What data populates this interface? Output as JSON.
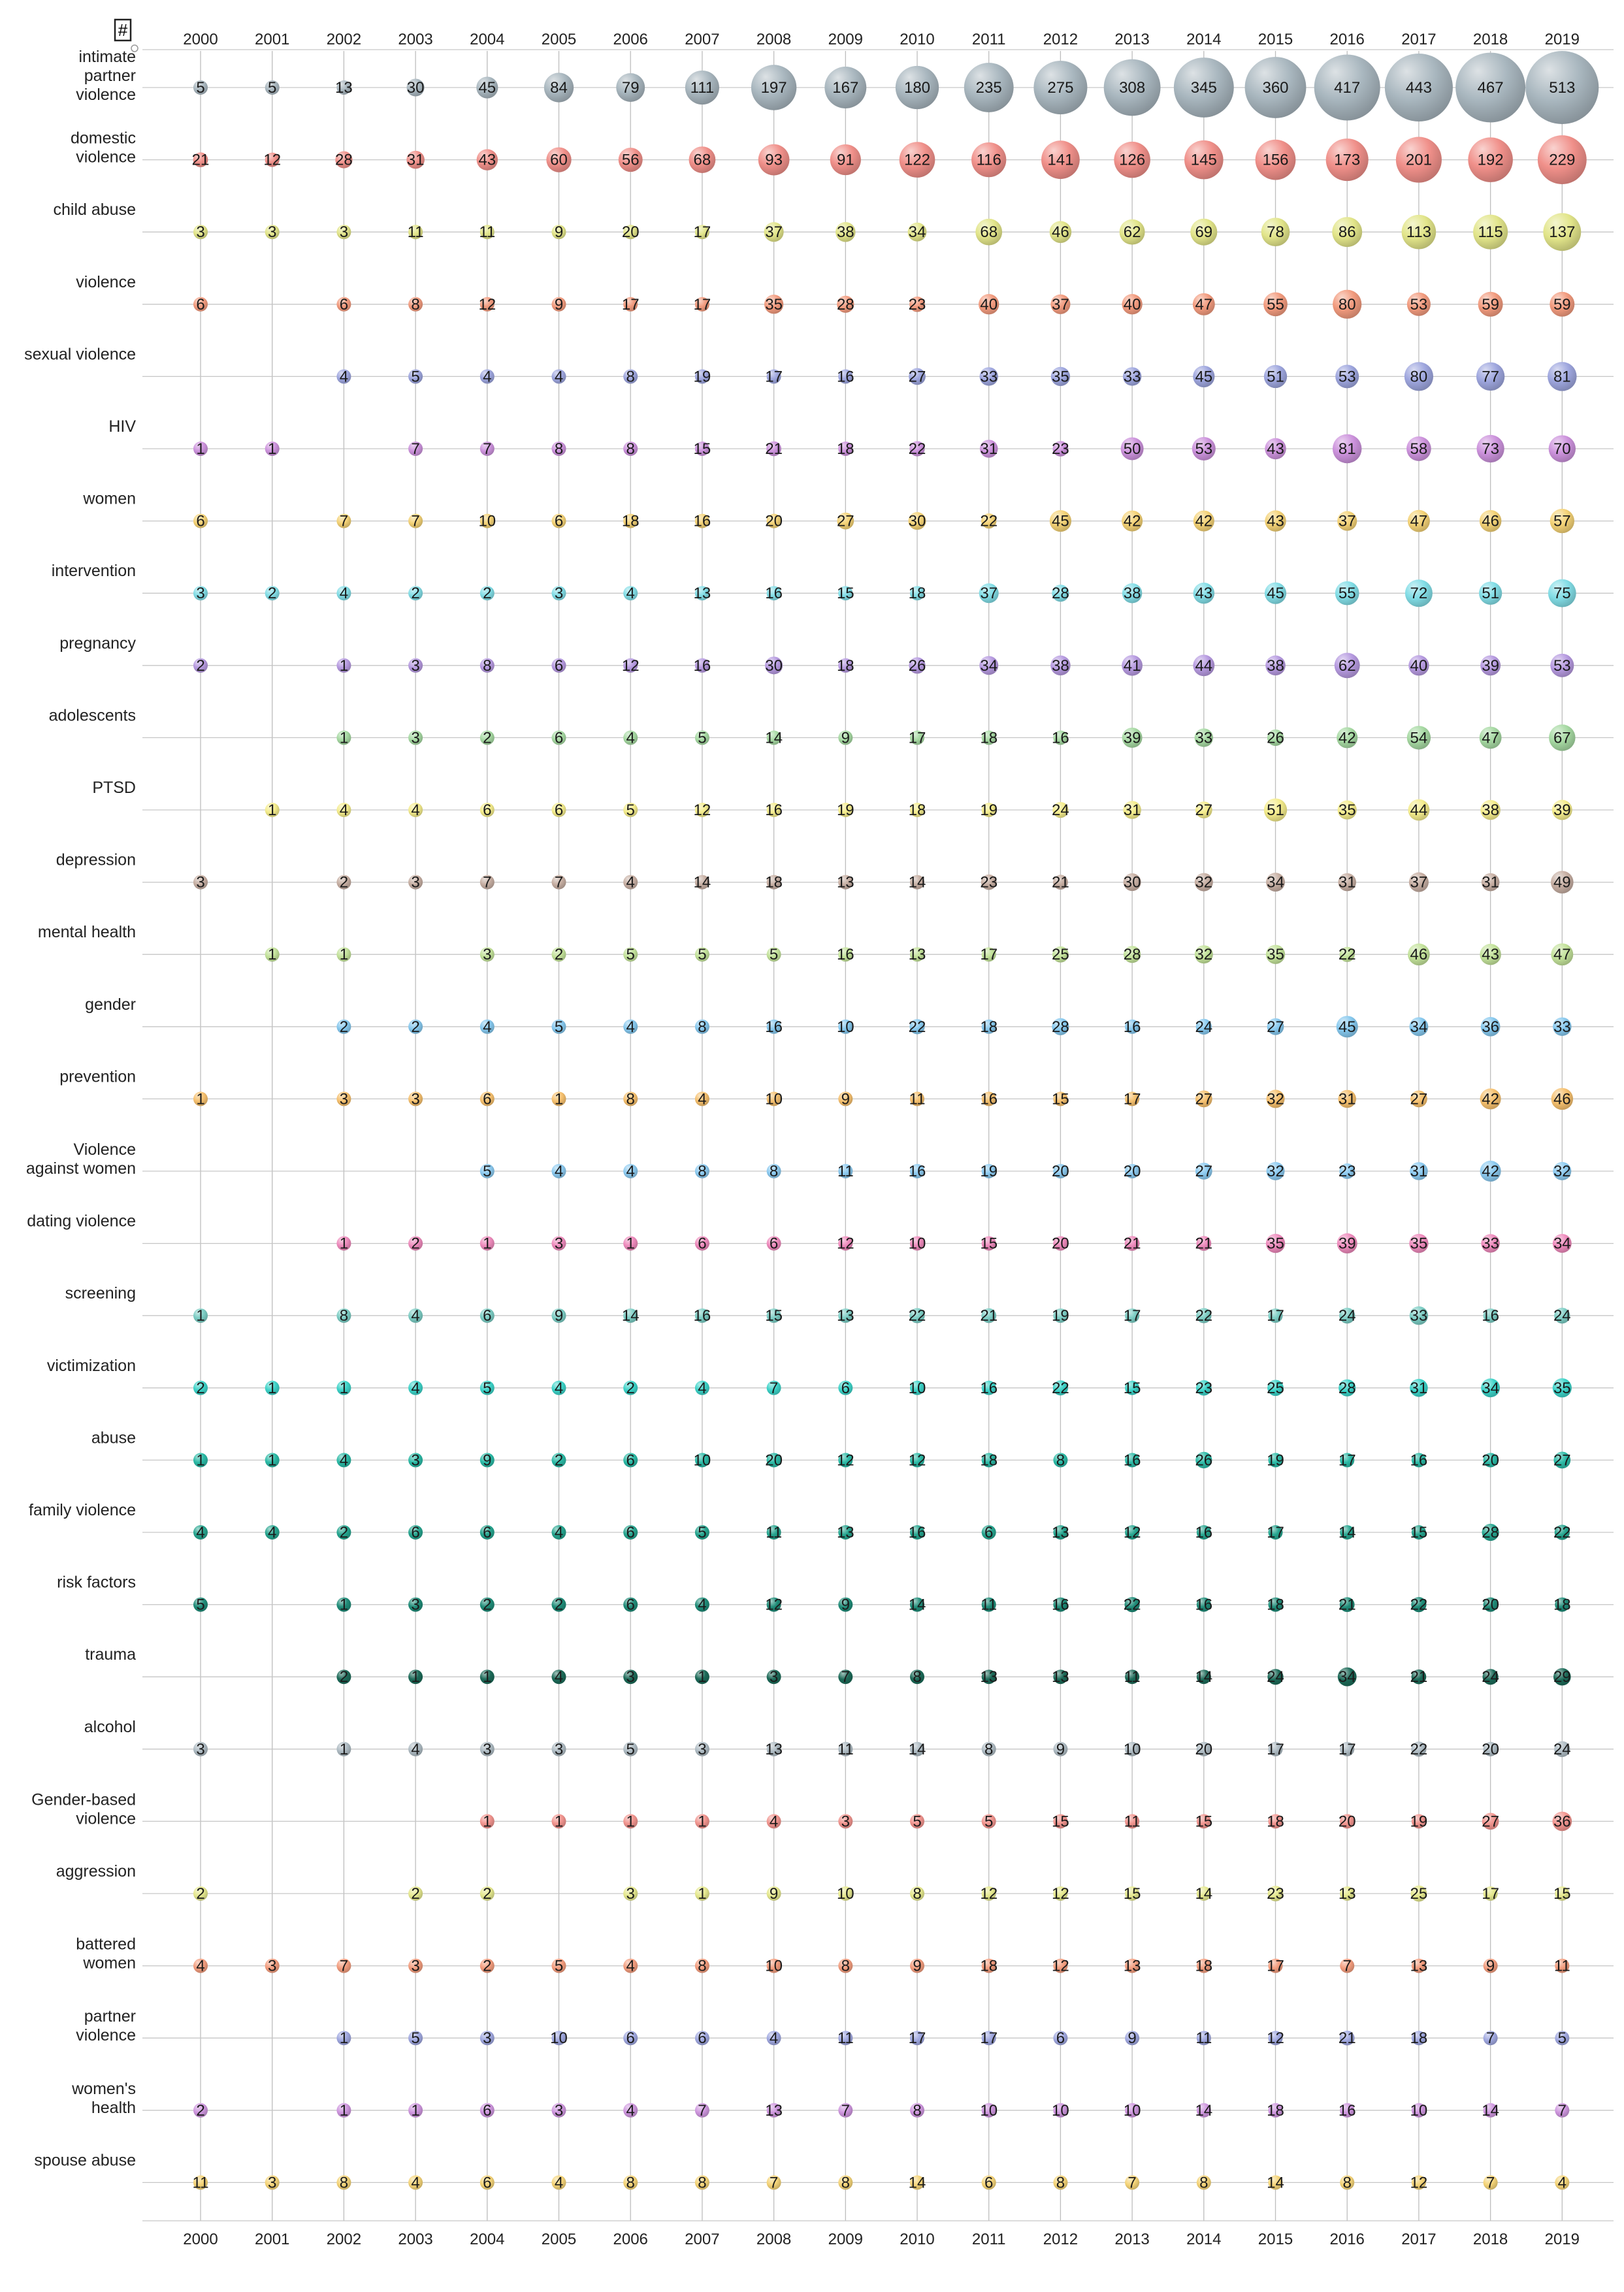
{
  "chart_data": {
    "type": "bubble-matrix",
    "corner_label": "#",
    "years": [
      "2000",
      "2001",
      "2002",
      "2003",
      "2004",
      "2005",
      "2006",
      "2007",
      "2008",
      "2009",
      "2010",
      "2011",
      "2012",
      "2013",
      "2014",
      "2015",
      "2016",
      "2017",
      "2018",
      "2019"
    ],
    "keywords": [
      {
        "label": [
          "intimate",
          "partner",
          "violence"
        ],
        "color": "#a9b7bf",
        "values": [
          5,
          5,
          13,
          30,
          45,
          84,
          79,
          111,
          197,
          167,
          180,
          235,
          275,
          308,
          345,
          360,
          417,
          443,
          467,
          513
        ]
      },
      {
        "label": [
          "domestic",
          "violence"
        ],
        "color": "#f0908a",
        "values": [
          21,
          12,
          28,
          31,
          43,
          60,
          56,
          68,
          93,
          91,
          122,
          116,
          141,
          126,
          145,
          156,
          173,
          201,
          192,
          229
        ]
      },
      {
        "label": [
          "child abuse"
        ],
        "color": "#e2e58a",
        "values": [
          3,
          3,
          3,
          11,
          11,
          9,
          20,
          17,
          37,
          38,
          34,
          68,
          46,
          62,
          69,
          78,
          86,
          113,
          115,
          137
        ]
      },
      {
        "label": [
          "violence"
        ],
        "color": "#f29b7e",
        "values": [
          6,
          null,
          6,
          8,
          12,
          9,
          17,
          17,
          35,
          28,
          23,
          40,
          37,
          40,
          47,
          55,
          80,
          53,
          59,
          59
        ]
      },
      {
        "label": [
          "sexual violence"
        ],
        "color": "#9ea6de",
        "values": [
          null,
          null,
          4,
          5,
          4,
          4,
          8,
          19,
          17,
          16,
          27,
          33,
          35,
          33,
          45,
          51,
          53,
          80,
          77,
          81
        ]
      },
      {
        "label": [
          "HIV"
        ],
        "color": "#cc92dc",
        "values": [
          1,
          1,
          null,
          7,
          7,
          8,
          8,
          15,
          21,
          18,
          22,
          31,
          23,
          50,
          53,
          43,
          81,
          58,
          73,
          70
        ]
      },
      {
        "label": [
          "women"
        ],
        "color": "#f4d276",
        "values": [
          6,
          null,
          7,
          7,
          10,
          6,
          18,
          16,
          20,
          27,
          30,
          22,
          45,
          42,
          42,
          43,
          37,
          47,
          46,
          57
        ]
      },
      {
        "label": [
          "intervention"
        ],
        "color": "#82dde6",
        "values": [
          3,
          2,
          4,
          2,
          2,
          3,
          4,
          13,
          16,
          15,
          18,
          37,
          28,
          38,
          43,
          45,
          55,
          72,
          51,
          75
        ]
      },
      {
        "label": [
          "pregnancy"
        ],
        "color": "#b69ae0",
        "values": [
          2,
          null,
          1,
          3,
          8,
          6,
          12,
          16,
          30,
          18,
          26,
          34,
          38,
          41,
          44,
          38,
          62,
          40,
          39,
          53
        ]
      },
      {
        "label": [
          "adolescents"
        ],
        "color": "#a6d9a2",
        "values": [
          null,
          null,
          1,
          3,
          2,
          6,
          4,
          5,
          14,
          9,
          17,
          18,
          16,
          39,
          33,
          26,
          42,
          54,
          47,
          67
        ]
      },
      {
        "label": [
          "PTSD"
        ],
        "color": "#f4ec8c",
        "values": [
          null,
          1,
          4,
          4,
          6,
          6,
          5,
          12,
          16,
          19,
          18,
          19,
          24,
          31,
          27,
          51,
          35,
          44,
          38,
          39
        ]
      },
      {
        "label": [
          "depression"
        ],
        "color": "#c6aea2",
        "values": [
          3,
          null,
          2,
          3,
          7,
          7,
          4,
          14,
          18,
          13,
          14,
          23,
          21,
          30,
          32,
          34,
          31,
          37,
          31,
          49
        ]
      },
      {
        "label": [
          "mental health"
        ],
        "color": "#c3e29a",
        "values": [
          null,
          1,
          1,
          null,
          3,
          2,
          5,
          5,
          5,
          16,
          13,
          17,
          25,
          28,
          32,
          35,
          22,
          46,
          43,
          47
        ]
      },
      {
        "label": [
          "gender"
        ],
        "color": "#86c8ee",
        "values": [
          null,
          null,
          2,
          2,
          4,
          5,
          4,
          8,
          16,
          10,
          22,
          18,
          28,
          16,
          24,
          27,
          45,
          34,
          36,
          33
        ]
      },
      {
        "label": [
          "prevention"
        ],
        "color": "#f6c06e",
        "values": [
          1,
          null,
          3,
          3,
          6,
          1,
          8,
          4,
          10,
          9,
          11,
          16,
          15,
          17,
          27,
          32,
          31,
          27,
          42,
          46
        ]
      },
      {
        "label": [
          "Violence",
          "against women"
        ],
        "color": "#8ccaf0",
        "values": [
          null,
          null,
          null,
          null,
          5,
          4,
          4,
          8,
          8,
          11,
          16,
          19,
          20,
          20,
          27,
          32,
          23,
          31,
          42,
          32
        ]
      },
      {
        "label": [
          "dating violence"
        ],
        "color": "#ee8abc",
        "values": [
          null,
          null,
          1,
          2,
          1,
          3,
          1,
          6,
          6,
          12,
          10,
          15,
          20,
          21,
          21,
          35,
          39,
          35,
          33,
          34
        ]
      },
      {
        "label": [
          "screening"
        ],
        "color": "#7ccdc4",
        "values": [
          1,
          null,
          8,
          4,
          6,
          9,
          14,
          16,
          15,
          13,
          22,
          21,
          19,
          17,
          22,
          17,
          24,
          33,
          16,
          24
        ]
      },
      {
        "label": [
          "victimization"
        ],
        "color": "#3cd3c8",
        "values": [
          2,
          1,
          1,
          4,
          5,
          4,
          2,
          4,
          7,
          6,
          10,
          16,
          22,
          15,
          23,
          25,
          28,
          31,
          34,
          35
        ]
      },
      {
        "label": [
          "abuse"
        ],
        "color": "#2bbaa6",
        "values": [
          1,
          1,
          4,
          3,
          9,
          2,
          6,
          10,
          20,
          12,
          12,
          18,
          8,
          16,
          26,
          19,
          17,
          16,
          20,
          27
        ]
      },
      {
        "label": [
          "family violence"
        ],
        "color": "#26a58f",
        "values": [
          4,
          4,
          2,
          6,
          6,
          4,
          6,
          5,
          11,
          13,
          16,
          6,
          13,
          12,
          16,
          17,
          14,
          15,
          28,
          22
        ]
      },
      {
        "label": [
          "risk factors"
        ],
        "color": "#1f8c78",
        "values": [
          5,
          null,
          1,
          3,
          2,
          2,
          6,
          4,
          12,
          9,
          14,
          11,
          16,
          22,
          16,
          18,
          21,
          22,
          20,
          18
        ]
      },
      {
        "label": [
          "trauma"
        ],
        "color": "#1c6a58",
        "values": [
          null,
          null,
          2,
          1,
          1,
          4,
          3,
          1,
          3,
          7,
          8,
          13,
          13,
          11,
          14,
          24,
          34,
          21,
          24,
          29
        ]
      },
      {
        "label": [
          "alcohol"
        ],
        "color": "#aebbc3",
        "values": [
          3,
          null,
          1,
          4,
          3,
          3,
          5,
          3,
          13,
          11,
          14,
          8,
          9,
          10,
          20,
          17,
          17,
          22,
          20,
          24
        ]
      },
      {
        "label": [
          "Gender-based",
          "violence"
        ],
        "color": "#f1948e",
        "values": [
          null,
          null,
          null,
          null,
          1,
          1,
          1,
          1,
          4,
          3,
          5,
          5,
          15,
          11,
          15,
          18,
          20,
          19,
          27,
          36
        ]
      },
      {
        "label": [
          "aggression"
        ],
        "color": "#e5e88e",
        "values": [
          2,
          null,
          null,
          2,
          2,
          null,
          3,
          1,
          9,
          10,
          8,
          12,
          12,
          15,
          14,
          23,
          13,
          25,
          17,
          15
        ]
      },
      {
        "label": [
          "battered",
          "women"
        ],
        "color": "#f39d7e",
        "values": [
          4,
          3,
          7,
          3,
          2,
          5,
          4,
          8,
          10,
          8,
          9,
          18,
          12,
          13,
          18,
          17,
          7,
          13,
          9,
          11
        ]
      },
      {
        "label": [
          "partner",
          "violence"
        ],
        "color": "#a0a8e0",
        "values": [
          null,
          null,
          1,
          5,
          3,
          10,
          6,
          6,
          4,
          11,
          17,
          17,
          6,
          9,
          11,
          12,
          21,
          18,
          7,
          5
        ]
      },
      {
        "label": [
          "women's",
          "health"
        ],
        "color": "#ce96de",
        "values": [
          2,
          null,
          1,
          1,
          6,
          3,
          4,
          7,
          13,
          7,
          8,
          10,
          10,
          10,
          14,
          18,
          16,
          10,
          14,
          7
        ]
      },
      {
        "label": [
          "spouse abuse"
        ],
        "color": "#f5d478",
        "values": [
          11,
          3,
          8,
          4,
          6,
          4,
          8,
          8,
          7,
          8,
          14,
          6,
          8,
          7,
          8,
          14,
          8,
          12,
          7,
          4
        ]
      }
    ]
  }
}
